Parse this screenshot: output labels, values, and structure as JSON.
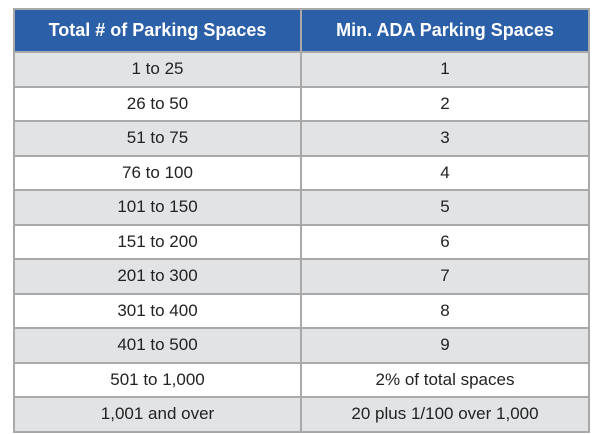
{
  "table": {
    "headers": [
      "Total # of Parking Spaces",
      "Min. ADA Parking Spaces"
    ],
    "rows": [
      [
        "1 to 25",
        "1"
      ],
      [
        "26 to 50",
        "2"
      ],
      [
        "51 to 75",
        "3"
      ],
      [
        "76 to 100",
        "4"
      ],
      [
        "101 to 150",
        "5"
      ],
      [
        "151 to 200",
        "6"
      ],
      [
        "201 to 300",
        "7"
      ],
      [
        "301 to 400",
        "8"
      ],
      [
        "401 to 500",
        "9"
      ],
      [
        "501 to 1,000",
        "2% of total spaces"
      ],
      [
        "1,001 and over",
        "20 plus 1/100 over 1,000"
      ]
    ]
  },
  "colors": {
    "header_bg": "#2b5fa8",
    "header_text": "#ffffff",
    "stripe_bg": "#e2e3e5",
    "border": "#a9a9a9"
  }
}
